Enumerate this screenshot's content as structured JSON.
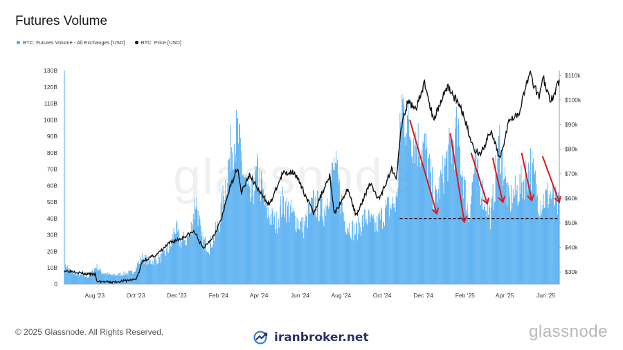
{
  "header": {
    "title": "Futures Volume"
  },
  "legend": [
    {
      "label": "BTC: Futures Volume - All Exchanges [USD]",
      "color": "#4aa9f0"
    },
    {
      "label": "BTC: Price [USD]",
      "color": "#111111"
    }
  ],
  "footer": {
    "copyright": "© 2025 Glassnode. All Rights Reserved.",
    "brand": "iranbroker.net",
    "logo_text": "glassnode",
    "watermark": "glassnode"
  },
  "chart_data": {
    "type": "bar",
    "x_axis": {
      "start": "2023-07-01",
      "end": "2025-07-05",
      "ticks": [
        "Aug '23",
        "Oct '23",
        "Dec '23",
        "Feb '24",
        "Apr '24",
        "Jun '24",
        "Aug '24",
        "Oct '24",
        "Dec '24",
        "Feb '25",
        "Apr '25",
        "Jun '25"
      ]
    },
    "y_left": {
      "range": [
        0,
        130000000000
      ],
      "ticks": [
        "0",
        "10B",
        "20B",
        "30B",
        "40B",
        "50B",
        "60B",
        "70B",
        "80B",
        "90B",
        "100B",
        "110B",
        "120B",
        "130B"
      ]
    },
    "y_right": {
      "range": [
        25000,
        112000
      ],
      "ticks": [
        "$30k",
        "$40k",
        "$50k",
        "$60k",
        "$70k",
        "$80k",
        "$90k",
        "$100k",
        "$110k"
      ]
    },
    "series": [
      {
        "name": "BTC: Futures Volume - All Exchanges [USD]",
        "type": "bar",
        "axis": "left",
        "color": "#4aa9f0",
        "points": [
          [
            "2023-07-01",
            10000000000
          ],
          [
            "2023-07-03",
            13000000000
          ],
          [
            "2023-07-10",
            8000000000
          ],
          [
            "2023-07-25",
            6000000000
          ],
          [
            "2023-08-05",
            5000000000
          ],
          [
            "2023-08-17",
            12000000000
          ],
          [
            "2023-08-25",
            8000000000
          ],
          [
            "2023-09-10",
            6000000000
          ],
          [
            "2023-09-25",
            7000000000
          ],
          [
            "2023-10-10",
            8000000000
          ],
          [
            "2023-10-24",
            18000000000
          ],
          [
            "2023-11-05",
            15000000000
          ],
          [
            "2023-11-20",
            17000000000
          ],
          [
            "2023-12-05",
            25000000000
          ],
          [
            "2023-12-12",
            38000000000
          ],
          [
            "2023-12-20",
            28000000000
          ],
          [
            "2024-01-03",
            32000000000
          ],
          [
            "2024-01-12",
            58000000000
          ],
          [
            "2024-01-20",
            30000000000
          ],
          [
            "2024-02-01",
            25000000000
          ],
          [
            "2024-02-15",
            40000000000
          ],
          [
            "2024-02-28",
            75000000000
          ],
          [
            "2024-03-05",
            95000000000
          ],
          [
            "2024-03-14",
            100000000000
          ],
          [
            "2024-03-20",
            80000000000
          ],
          [
            "2024-04-01",
            55000000000
          ],
          [
            "2024-04-13",
            75000000000
          ],
          [
            "2024-04-25",
            50000000000
          ],
          [
            "2024-05-10",
            40000000000
          ],
          [
            "2024-05-20",
            55000000000
          ],
          [
            "2024-06-05",
            45000000000
          ],
          [
            "2024-06-20",
            38000000000
          ],
          [
            "2024-07-05",
            55000000000
          ],
          [
            "2024-07-20",
            48000000000
          ],
          [
            "2024-08-05",
            80000000000
          ],
          [
            "2024-08-20",
            42000000000
          ],
          [
            "2024-09-05",
            35000000000
          ],
          [
            "2024-09-20",
            45000000000
          ],
          [
            "2024-10-05",
            38000000000
          ],
          [
            "2024-10-20",
            50000000000
          ],
          [
            "2024-11-05",
            55000000000
          ],
          [
            "2024-11-13",
            122000000000
          ],
          [
            "2024-11-22",
            105000000000
          ],
          [
            "2024-12-05",
            95000000000
          ],
          [
            "2024-12-18",
            90000000000
          ],
          [
            "2025-01-01",
            55000000000
          ],
          [
            "2025-01-20",
            85000000000
          ],
          [
            "2025-02-03",
            100000000000
          ],
          [
            "2025-02-20",
            45000000000
          ],
          [
            "2025-03-01",
            80000000000
          ],
          [
            "2025-03-10",
            65000000000
          ],
          [
            "2025-03-25",
            45000000000
          ],
          [
            "2025-04-07",
            95000000000
          ],
          [
            "2025-04-20",
            55000000000
          ],
          [
            "2025-05-08",
            65000000000
          ],
          [
            "2025-05-23",
            80000000000
          ],
          [
            "2025-06-05",
            55000000000
          ],
          [
            "2025-06-22",
            60000000000
          ],
          [
            "2025-07-05",
            50000000000
          ]
        ]
      },
      {
        "name": "BTC: Price [USD]",
        "type": "line",
        "axis": "right",
        "color": "#111111",
        "points": [
          [
            "2023-07-01",
            30500
          ],
          [
            "2023-07-15",
            30300
          ],
          [
            "2023-08-01",
            29200
          ],
          [
            "2023-08-16",
            29000
          ],
          [
            "2023-08-18",
            26200
          ],
          [
            "2023-09-10",
            25800
          ],
          [
            "2023-09-25",
            26300
          ],
          [
            "2023-10-15",
            27000
          ],
          [
            "2023-10-20",
            30000
          ],
          [
            "2023-10-25",
            34500
          ],
          [
            "2023-11-15",
            37000
          ],
          [
            "2023-12-05",
            42000
          ],
          [
            "2023-12-20",
            43500
          ],
          [
            "2024-01-10",
            46500
          ],
          [
            "2024-01-23",
            39500
          ],
          [
            "2024-02-08",
            45000
          ],
          [
            "2024-02-20",
            52000
          ],
          [
            "2024-02-28",
            61000
          ],
          [
            "2024-03-14",
            73000
          ],
          [
            "2024-03-20",
            62500
          ],
          [
            "2024-04-01",
            69500
          ],
          [
            "2024-04-17",
            62000
          ],
          [
            "2024-05-01",
            57500
          ],
          [
            "2024-05-20",
            70000
          ],
          [
            "2024-06-06",
            71000
          ],
          [
            "2024-06-25",
            60000
          ],
          [
            "2024-07-05",
            54000
          ],
          [
            "2024-07-29",
            69500
          ],
          [
            "2024-08-05",
            53500
          ],
          [
            "2024-08-25",
            64000
          ],
          [
            "2024-09-06",
            53000
          ],
          [
            "2024-09-27",
            66000
          ],
          [
            "2024-10-10",
            59500
          ],
          [
            "2024-10-29",
            72000
          ],
          [
            "2024-11-05",
            69000
          ],
          [
            "2024-11-13",
            90000
          ],
          [
            "2024-11-22",
            99000
          ],
          [
            "2024-12-05",
            97000
          ],
          [
            "2024-12-17",
            107000
          ],
          [
            "2024-12-30",
            92000
          ],
          [
            "2025-01-20",
            106000
          ],
          [
            "2025-02-10",
            96000
          ],
          [
            "2025-02-28",
            80000
          ],
          [
            "2025-03-10",
            78000
          ],
          [
            "2025-03-25",
            87000
          ],
          [
            "2025-04-08",
            76000
          ],
          [
            "2025-04-22",
            93000
          ],
          [
            "2025-05-05",
            94000
          ],
          [
            "2025-05-22",
            111000
          ],
          [
            "2025-06-05",
            101000
          ],
          [
            "2025-06-10",
            110000
          ],
          [
            "2025-06-22",
            99000
          ],
          [
            "2025-07-05",
            108000
          ]
        ]
      }
    ],
    "annotations": {
      "support_line_value": 40000000000,
      "arrows": [
        {
          "from": [
            "2024-11-25",
            100000000000
          ],
          "to": [
            "2025-01-04",
            43000000000
          ]
        },
        {
          "from": [
            "2025-01-24",
            92000000000
          ],
          "to": [
            "2025-02-14",
            38000000000
          ]
        },
        {
          "from": [
            "2025-02-24",
            80000000000
          ],
          "to": [
            "2025-03-20",
            49000000000
          ]
        },
        {
          "from": [
            "2025-03-28",
            77000000000
          ],
          "to": [
            "2025-04-12",
            50000000000
          ]
        },
        {
          "from": [
            "2025-05-10",
            80000000000
          ],
          "to": [
            "2025-05-25",
            51000000000
          ]
        },
        {
          "from": [
            "2025-06-10",
            78000000000
          ],
          "to": [
            "2025-07-05",
            50000000000
          ]
        }
      ]
    }
  }
}
